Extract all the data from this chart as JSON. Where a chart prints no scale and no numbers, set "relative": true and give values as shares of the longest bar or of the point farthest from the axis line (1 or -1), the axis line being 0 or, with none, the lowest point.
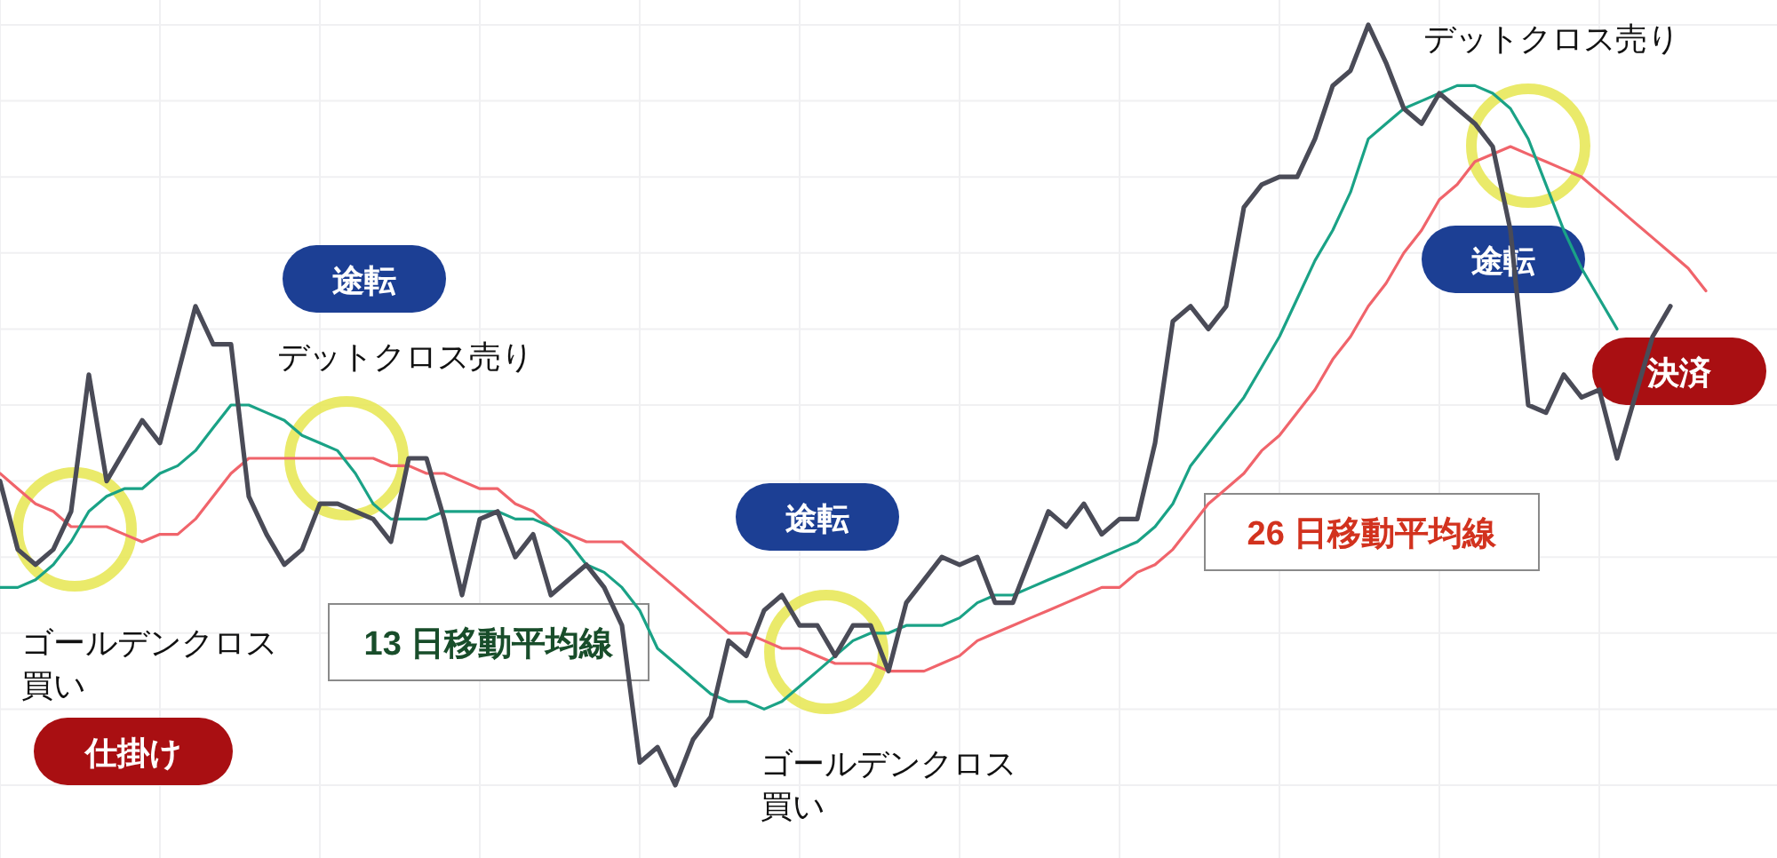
{
  "chart_data": {
    "type": "line",
    "relative": true,
    "grid": true,
    "categories": [
      null,
      null,
      null,
      null,
      null,
      null,
      null,
      null,
      null,
      null,
      null,
      null,
      null,
      null,
      null,
      null,
      null,
      null,
      null,
      null,
      null,
      null,
      null,
      null,
      null,
      null,
      null,
      null,
      null,
      null,
      null,
      null,
      null,
      null,
      null,
      null,
      null,
      null,
      null,
      null,
      null,
      null,
      null,
      null,
      null,
      null,
      null,
      null,
      null,
      null,
      null,
      null,
      null,
      null,
      null,
      null,
      null,
      null,
      null,
      null,
      null,
      null,
      null,
      null,
      null,
      null,
      null,
      null,
      null,
      null,
      null,
      null,
      null,
      null,
      null,
      null,
      null,
      null,
      null,
      null,
      null,
      null,
      null,
      null,
      null,
      null,
      null,
      null,
      null,
      null,
      null,
      null,
      null,
      null,
      null,
      null,
      null
    ],
    "series": [
      {
        "color": "#4a4b57",
        "values": [
          0.4,
          0.31,
          0.29,
          0.31,
          0.36,
          0.54,
          0.4,
          0.44,
          0.48,
          0.45,
          0.54,
          0.63,
          0.58,
          0.58,
          0.38,
          0.33,
          0.29,
          0.31,
          0.37,
          0.37,
          0.36,
          0.35,
          0.32,
          0.43,
          0.43,
          0.35,
          0.25,
          0.35,
          0.36,
          0.3,
          0.33,
          0.25,
          0.27,
          0.29,
          0.26,
          0.21,
          0.03,
          0.05,
          0,
          0.06,
          0.09,
          0.19,
          0.17,
          0.23,
          0.25,
          0.21,
          0.21,
          0.17,
          0.21,
          0.21,
          0.15,
          0.24,
          0.27,
          0.3,
          0.29,
          0.3,
          0.24,
          0.24,
          0.3,
          0.36,
          0.34,
          0.37,
          0.33,
          0.35,
          0.35,
          0.45,
          0.61,
          0.63,
          0.6,
          0.63,
          0.76,
          0.79,
          0.8,
          0.8,
          0.85,
          0.92,
          0.94,
          1,
          0.95,
          0.89,
          0.87,
          0.91,
          0.89,
          0.87,
          0.84,
          0.73,
          0.5,
          0.49,
          0.54,
          0.51,
          0.52,
          0.43,
          0.51,
          0.59,
          0.63,
          null,
          null
        ]
      },
      {
        "name": "13 日移動平均線",
        "color": "#1aa286",
        "values": [
          0.26,
          0.26,
          0.27,
          0.29,
          0.32,
          0.36,
          0.38,
          0.39,
          0.39,
          0.41,
          0.42,
          0.44,
          0.47,
          0.5,
          0.5,
          0.49,
          0.48,
          0.46,
          0.45,
          0.44,
          0.41,
          0.37,
          0.35,
          0.35,
          0.35,
          0.36,
          0.36,
          0.36,
          0.36,
          0.35,
          0.35,
          0.34,
          0.32,
          0.29,
          0.28,
          0.26,
          0.23,
          0.18,
          0.16,
          0.14,
          0.12,
          0.11,
          0.11,
          0.1,
          0.11,
          0.13,
          0.15,
          0.17,
          0.19,
          0.2,
          0.2,
          0.21,
          0.21,
          0.21,
          0.22,
          0.24,
          0.25,
          0.25,
          0.26,
          0.27,
          0.28,
          0.29,
          0.3,
          0.31,
          0.32,
          0.34,
          0.37,
          0.42,
          0.45,
          0.48,
          0.51,
          0.55,
          0.59,
          0.64,
          0.69,
          0.73,
          0.78,
          0.85,
          0.87,
          0.89,
          0.9,
          0.91,
          0.92,
          0.92,
          0.91,
          0.89,
          0.85,
          0.79,
          0.73,
          0.68,
          0.64,
          0.6,
          null,
          null,
          null,
          null,
          null
        ]
      },
      {
        "name": "26 日移動平均線",
        "color": "#f0646b",
        "values": [
          0.41,
          0.39,
          0.37,
          0.36,
          0.34,
          0.34,
          0.34,
          0.33,
          0.32,
          0.33,
          0.33,
          0.35,
          0.38,
          0.41,
          0.43,
          0.43,
          0.43,
          0.43,
          0.43,
          0.43,
          0.43,
          0.43,
          0.42,
          0.42,
          0.41,
          0.41,
          0.4,
          0.39,
          0.39,
          0.37,
          0.36,
          0.34,
          0.33,
          0.32,
          0.32,
          0.32,
          0.3,
          0.28,
          0.26,
          0.24,
          0.22,
          0.2,
          0.2,
          0.19,
          0.18,
          0.18,
          0.17,
          0.16,
          0.16,
          0.16,
          0.15,
          0.15,
          0.15,
          0.16,
          0.17,
          0.19,
          0.2,
          0.21,
          0.22,
          0.23,
          0.24,
          0.25,
          0.26,
          0.26,
          0.28,
          0.29,
          0.31,
          0.34,
          0.37,
          0.39,
          0.41,
          0.44,
          0.46,
          0.49,
          0.52,
          0.56,
          0.59,
          0.63,
          0.66,
          0.7,
          0.73,
          0.77,
          0.79,
          0.82,
          0.83,
          0.84,
          0.83,
          0.82,
          0.81,
          0.8,
          0.78,
          0.76,
          0.74,
          0.72,
          0.7,
          0.68,
          0.65
        ]
      }
    ],
    "annotations": [
      "途転",
      "デットクロス売り",
      "ゴールデンクロス買い",
      "仕掛け",
      "途転",
      "ゴールデンクロス買い",
      "デットクロス売り",
      "途転",
      "決済"
    ]
  }
}
